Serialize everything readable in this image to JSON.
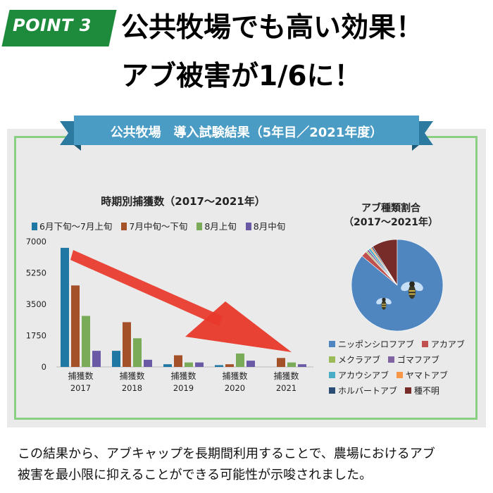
{
  "badge": {
    "label": "POINT 3",
    "color": "#1e8a3c"
  },
  "headline": {
    "line1": "公共牧場でも高い効果！",
    "line2": "アブ被害が1/6に！"
  },
  "ribbon": {
    "label": "公共牧場　導入試験結果（5年目／2021年度）",
    "color": "#4a9cc4"
  },
  "footer": {
    "line1": "この結果から、アブキャップを長期間利用することで、農場におけるアブ",
    "line2": "被害を最小限に抑えることができる可能性が示唆されました。"
  },
  "chart_data": [
    {
      "type": "bar",
      "title": "時期別捕獲数（2017〜2021年）",
      "categories": [
        "2017",
        "2018",
        "2019",
        "2020",
        "2021"
      ],
      "category_label": "捕獲数",
      "yticks": [
        "0",
        "1750",
        "3500",
        "5250",
        "7000"
      ],
      "ylim": [
        0,
        7000
      ],
      "grid": false,
      "legend_position": "top",
      "series": [
        {
          "name": "6月下旬〜7月上旬",
          "color": "#1f78a4",
          "values": [
            6650,
            900,
            150,
            100,
            0
          ]
        },
        {
          "name": "7月中旬〜下旬",
          "color": "#a4512a",
          "values": [
            4550,
            2500,
            650,
            150,
            500
          ]
        },
        {
          "name": "8月上旬",
          "color": "#7aab58",
          "values": [
            2850,
            1600,
            250,
            750,
            250
          ]
        },
        {
          "name": "8月中旬",
          "color": "#6a5aa5",
          "values": [
            900,
            400,
            250,
            350,
            150
          ]
        }
      ],
      "annotation": {
        "type": "arrow",
        "color": "#e8392b"
      }
    },
    {
      "type": "pie",
      "title_line1": "アブ種類割合",
      "title_line2": "（2017〜2021年）",
      "legend_position": "bottom",
      "slices": [
        {
          "name": "ニッポンシロフアブ",
          "color": "#4f86c0",
          "value": 86.0
        },
        {
          "name": "アカアブ",
          "color": "#c0504d",
          "value": 2.0
        },
        {
          "name": "メクラアブ",
          "color": "#9bbb59",
          "value": 0.5
        },
        {
          "name": "ゴマフアブ",
          "color": "#8064a2",
          "value": 0.7
        },
        {
          "name": "アカウシアブ",
          "color": "#4bacc6",
          "value": 0.8
        },
        {
          "name": "ヤマトアブ",
          "color": "#f79646",
          "value": 0.5
        },
        {
          "name": "ホルバートアブ",
          "color": "#2c4d75",
          "value": 0.5
        },
        {
          "name": "種不明",
          "color": "#772c2a",
          "value": 9.0
        }
      ]
    }
  ]
}
